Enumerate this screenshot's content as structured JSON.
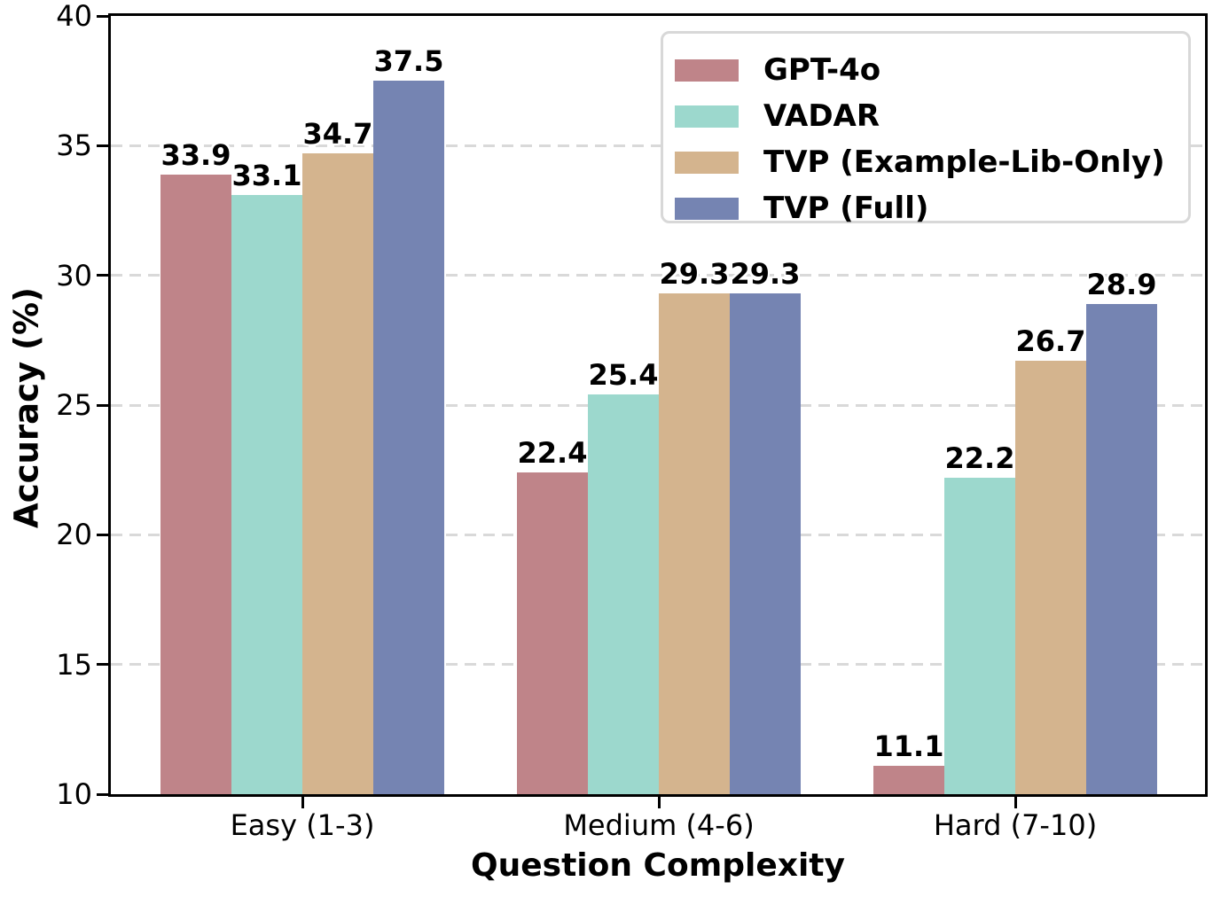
{
  "chart_data": {
    "type": "bar",
    "title": "",
    "xlabel": "Question Complexity",
    "ylabel": "Accuracy (%)",
    "categories": [
      "Easy (1-3)",
      "Medium (4-6)",
      "Hard (7-10)"
    ],
    "series": [
      {
        "name": "GPT-4o",
        "color": "#bf8489",
        "values": [
          33.9,
          22.4,
          11.1
        ]
      },
      {
        "name": "VADAR",
        "color": "#9cd8cd",
        "values": [
          33.1,
          25.4,
          22.2
        ]
      },
      {
        "name": "TVP (Example-Lib-Only)",
        "color": "#d4b48e",
        "values": [
          34.7,
          29.3,
          26.7
        ]
      },
      {
        "name": "TVP (Full)",
        "color": "#7584b2",
        "values": [
          37.5,
          29.3,
          28.9
        ]
      }
    ],
    "ylim": [
      10,
      40
    ],
    "yticks": [
      10,
      15,
      20,
      25,
      30,
      35,
      40
    ],
    "bar_labels_shown": true,
    "bar_label_decimals": 1,
    "grid": "horizontal-dashed",
    "grid_color": "#d9d9d9",
    "legend_position": "upper-right",
    "axis_color": "#000000",
    "text_color": "#000000",
    "background_color": "#ffffff"
  }
}
